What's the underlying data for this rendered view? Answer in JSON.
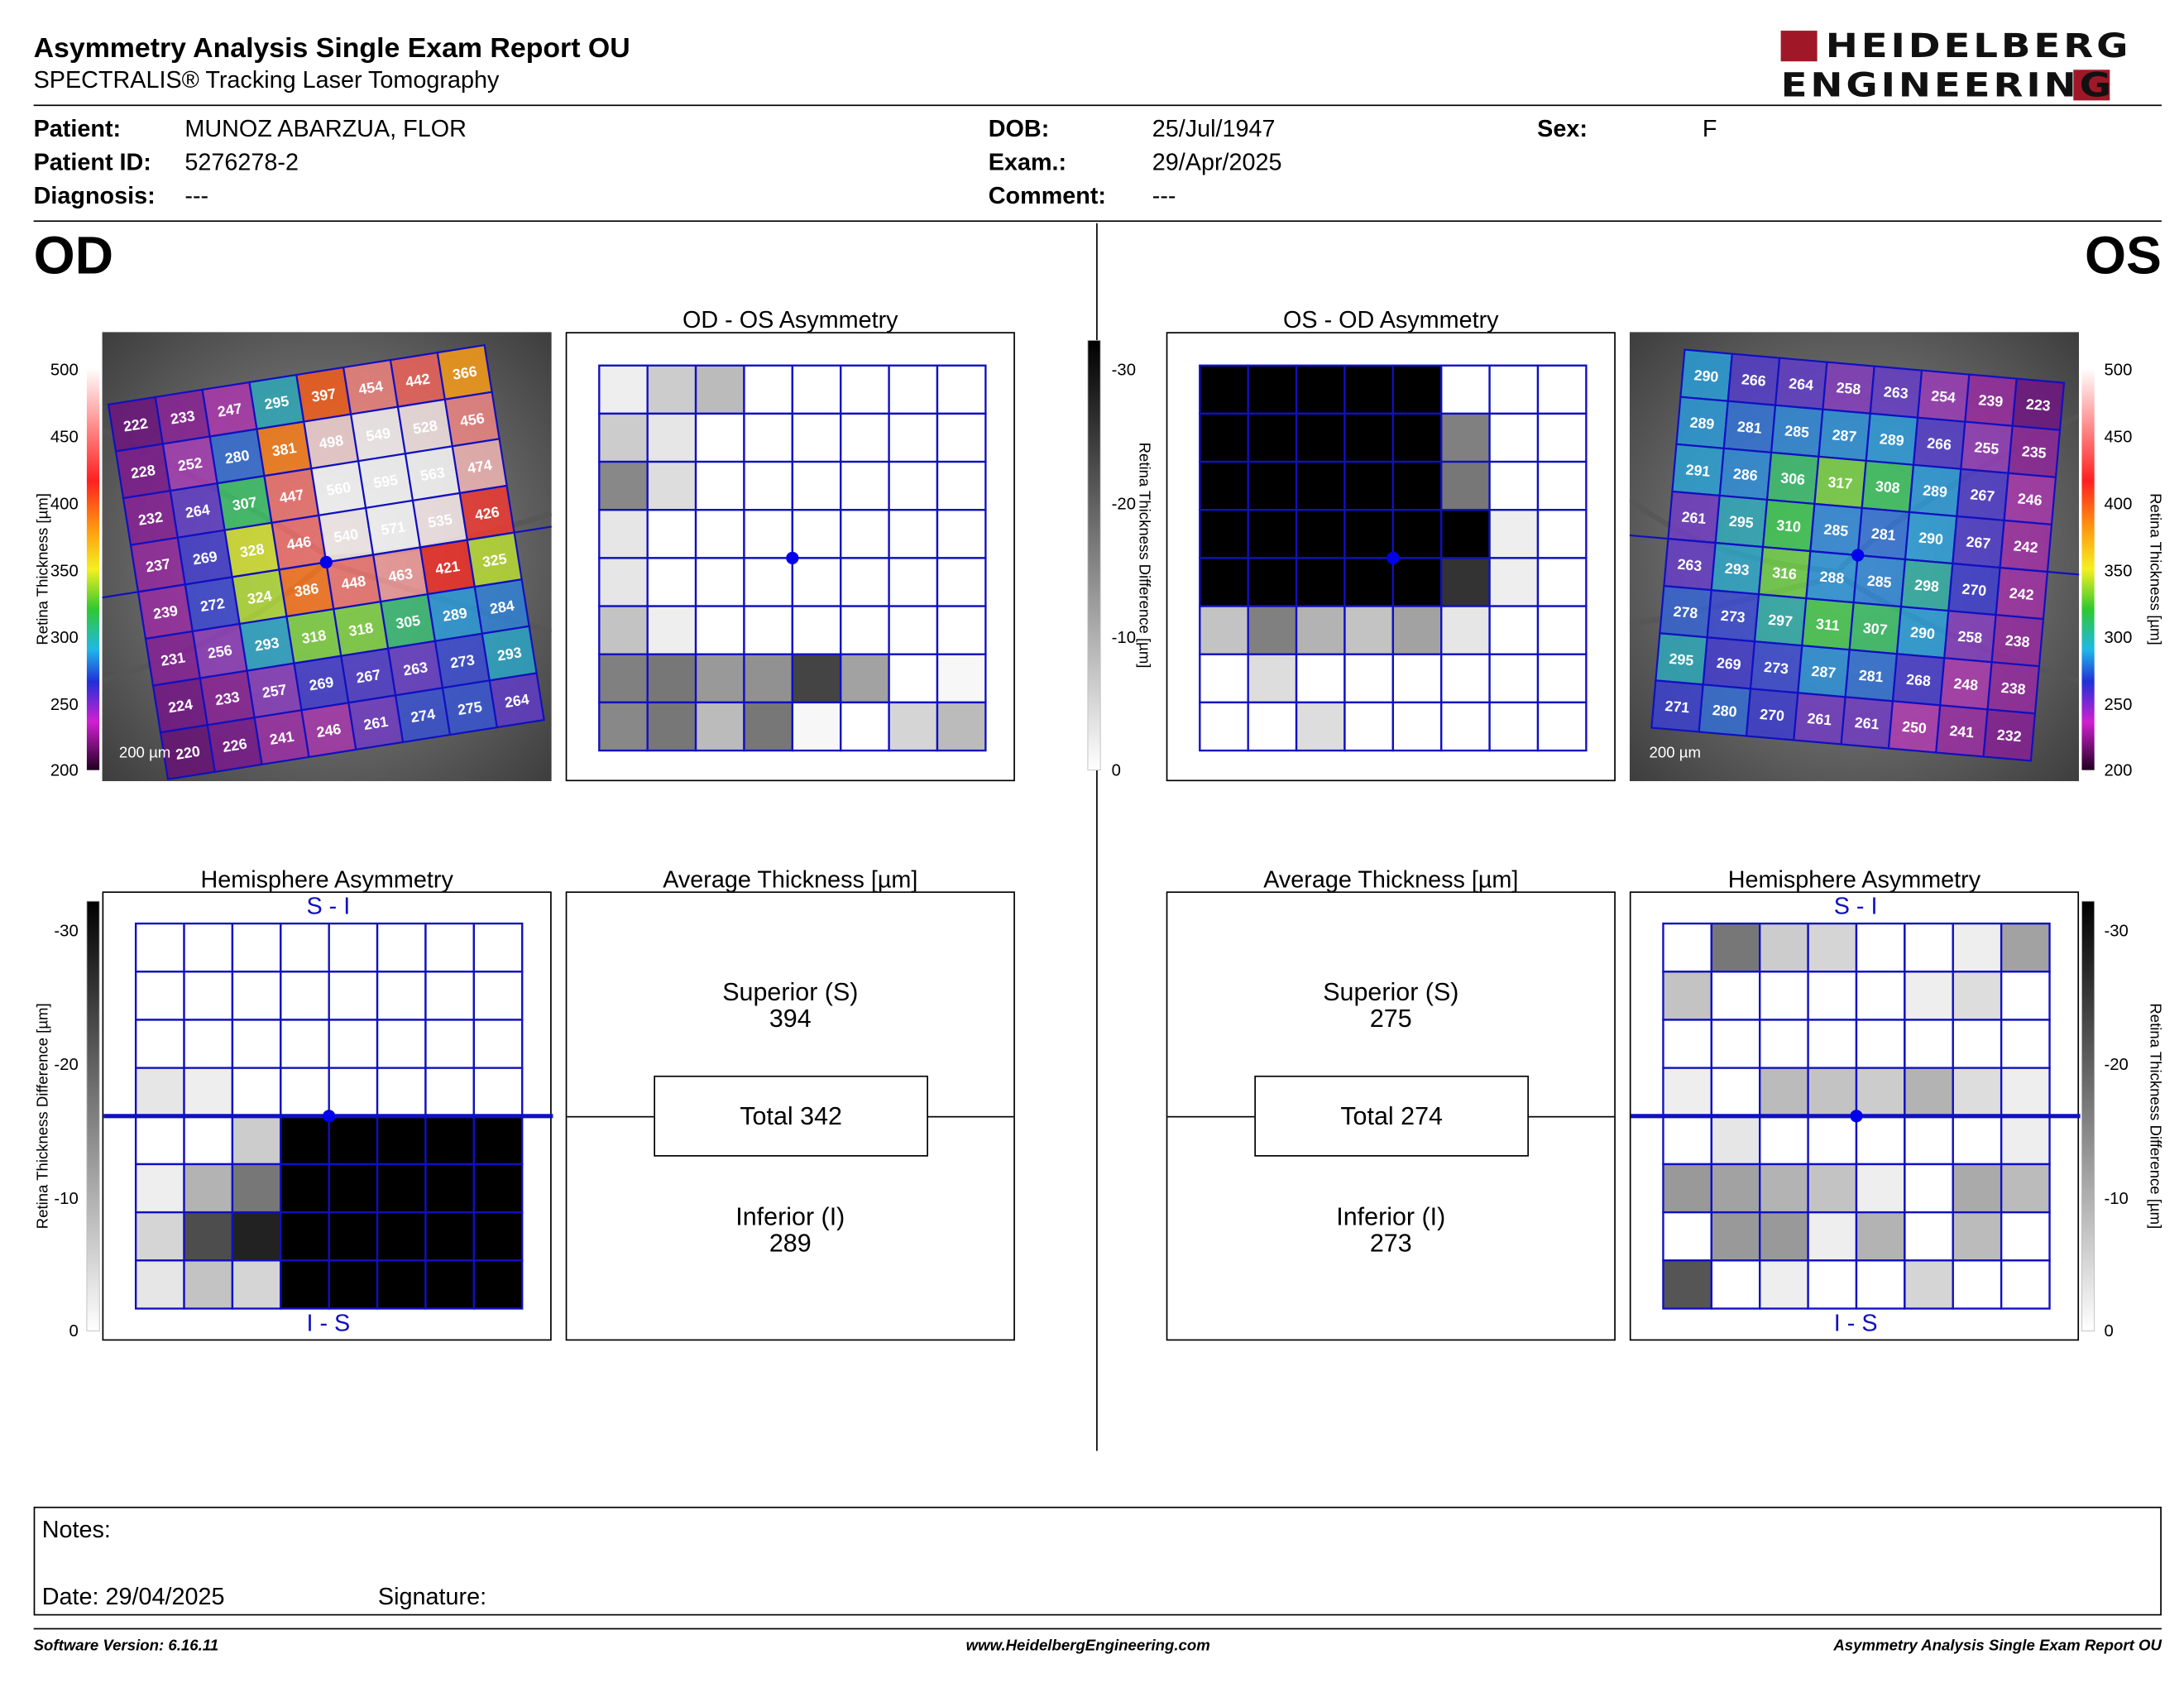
{
  "header": {
    "title": "Asymmetry Analysis Single Exam Report OU",
    "subtitle": "SPECTRALIS® Tracking Laser Tomography",
    "logo_line1": "HEIDELBERG",
    "logo_line2": "ENGINEERING",
    "logo_color": "#a01828"
  },
  "patient": {
    "patient_label": "Patient:",
    "patient_value": "MUNOZ ABARZUA, FLOR",
    "id_label": "Patient ID:",
    "id_value": "5276278-2",
    "diagnosis_label": "Diagnosis:",
    "diagnosis_value": "---",
    "dob_label": "DOB:",
    "dob_value": "25/Jul/1947",
    "exam_label": "Exam.:",
    "exam_value": "29/Apr/2025",
    "comment_label": "Comment:",
    "comment_value": "---",
    "sex_label": "Sex:",
    "sex_value": "F"
  },
  "od": {
    "eye_label": "OD",
    "asym_title": "OD - OS Asymmetry",
    "hemi_title": "Hemisphere Asymmetry",
    "hemi_top": "S - I",
    "hemi_bottom": "I - S",
    "avg_title": "Average Thickness [µm]",
    "superior_label": "Superior (S)",
    "superior_value": "394",
    "total_text": "Total 342",
    "inferior_label": "Inferior (I)",
    "inferior_value": "289",
    "scale_text": "200 µm",
    "thickness_grid": [
      [
        222,
        233,
        247,
        295,
        397,
        454,
        442,
        366
      ],
      [
        228,
        252,
        280,
        381,
        498,
        549,
        528,
        456
      ],
      [
        232,
        264,
        307,
        447,
        560,
        595,
        563,
        474
      ],
      [
        237,
        269,
        328,
        446,
        540,
        571,
        535,
        426
      ],
      [
        239,
        272,
        324,
        386,
        448,
        463,
        421,
        325
      ],
      [
        231,
        256,
        293,
        318,
        318,
        305,
        289,
        284
      ],
      [
        224,
        233,
        257,
        269,
        267,
        263,
        273,
        293
      ],
      [
        220,
        226,
        241,
        246,
        261,
        274,
        275,
        264
      ]
    ],
    "asym_grid": [
      [
        2,
        6,
        8,
        0,
        0,
        0,
        0,
        0
      ],
      [
        6,
        3,
        0,
        0,
        0,
        0,
        0,
        0
      ],
      [
        14,
        4,
        0,
        0,
        0,
        0,
        0,
        0
      ],
      [
        3,
        0,
        0,
        0,
        0,
        0,
        0,
        0
      ],
      [
        3,
        0,
        0,
        0,
        0,
        0,
        0,
        0
      ],
      [
        7,
        2,
        0,
        0,
        0,
        0,
        0,
        0
      ],
      [
        15,
        16,
        12,
        13,
        22,
        11,
        0,
        1
      ],
      [
        14,
        16,
        8,
        16,
        1,
        0,
        5,
        8
      ]
    ],
    "hemi_grid": [
      [
        0,
        0,
        0,
        0,
        0,
        0,
        0,
        0
      ],
      [
        0,
        0,
        0,
        0,
        0,
        0,
        0,
        0
      ],
      [
        0,
        0,
        0,
        0,
        0,
        0,
        0,
        0
      ],
      [
        3,
        2,
        0,
        0,
        0,
        0,
        0,
        0
      ],
      [
        0,
        0,
        6,
        30,
        30,
        30,
        30,
        30
      ],
      [
        2,
        9,
        16,
        30,
        30,
        30,
        30,
        30
      ],
      [
        5,
        21,
        26,
        30,
        30,
        30,
        30,
        30
      ],
      [
        3,
        7,
        5,
        30,
        30,
        30,
        30,
        30
      ]
    ]
  },
  "os": {
    "eye_label": "OS",
    "asym_title": "OS - OD Asymmetry",
    "hemi_title": "Hemisphere Asymmetry",
    "hemi_top": "S - I",
    "hemi_bottom": "I - S",
    "avg_title": "Average Thickness [µm]",
    "superior_label": "Superior (S)",
    "superior_value": "275",
    "total_text": "Total 274",
    "inferior_label": "Inferior (I)",
    "inferior_value": "273",
    "scale_text": "200 µm",
    "thickness_grid": [
      [
        290,
        266,
        264,
        258,
        263,
        254,
        239,
        223
      ],
      [
        289,
        281,
        285,
        287,
        289,
        266,
        255,
        235
      ],
      [
        291,
        286,
        306,
        317,
        308,
        289,
        267,
        246
      ],
      [
        261,
        295,
        310,
        285,
        281,
        290,
        267,
        242
      ],
      [
        263,
        293,
        316,
        288,
        285,
        298,
        270,
        242
      ],
      [
        278,
        273,
        297,
        311,
        307,
        290,
        258,
        238
      ],
      [
        295,
        269,
        273,
        287,
        281,
        268,
        248,
        238
      ],
      [
        271,
        280,
        270,
        261,
        261,
        250,
        241,
        232
      ]
    ],
    "asym_grid": [
      [
        30,
        30,
        30,
        30,
        30,
        0,
        0,
        0
      ],
      [
        30,
        30,
        30,
        30,
        30,
        15,
        0,
        0
      ],
      [
        30,
        30,
        30,
        30,
        30,
        16,
        0,
        0
      ],
      [
        30,
        30,
        30,
        30,
        30,
        30,
        2,
        0
      ],
      [
        30,
        30,
        30,
        30,
        30,
        24,
        2,
        0
      ],
      [
        7,
        15,
        9,
        7,
        11,
        3,
        0,
        0
      ],
      [
        0,
        4,
        0,
        0,
        0,
        0,
        0,
        0
      ],
      [
        0,
        0,
        4,
        0,
        0,
        0,
        0,
        0
      ]
    ],
    "hemi_grid": [
      [
        0,
        16,
        6,
        5,
        0,
        0,
        2,
        11
      ],
      [
        7,
        0,
        0,
        0,
        0,
        2,
        4,
        0
      ],
      [
        0,
        0,
        0,
        0,
        0,
        0,
        0,
        0
      ],
      [
        2,
        0,
        8,
        7,
        6,
        9,
        4,
        2
      ],
      [
        0,
        3,
        0,
        0,
        0,
        0,
        0,
        2
      ],
      [
        12,
        11,
        9,
        7,
        2,
        0,
        10,
        8
      ],
      [
        0,
        12,
        12,
        2,
        9,
        0,
        8,
        0
      ],
      [
        20,
        0,
        2,
        0,
        0,
        5,
        0,
        0
      ]
    ]
  },
  "scales": {
    "thickness_label": "Retina Thickness [µm]",
    "thickness_ticks": [
      "500",
      "450",
      "400",
      "350",
      "300",
      "250",
      "200"
    ],
    "diff_label": "Retina Thickness Difference [µm]",
    "diff_ticks_asym": [
      "-30",
      "-20",
      "-10",
      "0"
    ],
    "diff_ticks_hemi": [
      "-30",
      "-20",
      "-10",
      "0"
    ],
    "hemi_ticks_right": [
      "-30",
      "-20",
      "-10",
      "0"
    ]
  },
  "notes": {
    "notes_label": "Notes:",
    "date_text": "Date: 29/04/2025",
    "signature_label": "Signature:"
  },
  "footer": {
    "software": "Software Version: 6.16.11",
    "website": "www.HeidelbergEngineering.com",
    "report": "Asymmetry Analysis Single Exam Report OU"
  },
  "colors": {
    "grid_line": "#1010c0",
    "fovea_dot": "#0000ee",
    "hemi_label": "#1010c0"
  }
}
